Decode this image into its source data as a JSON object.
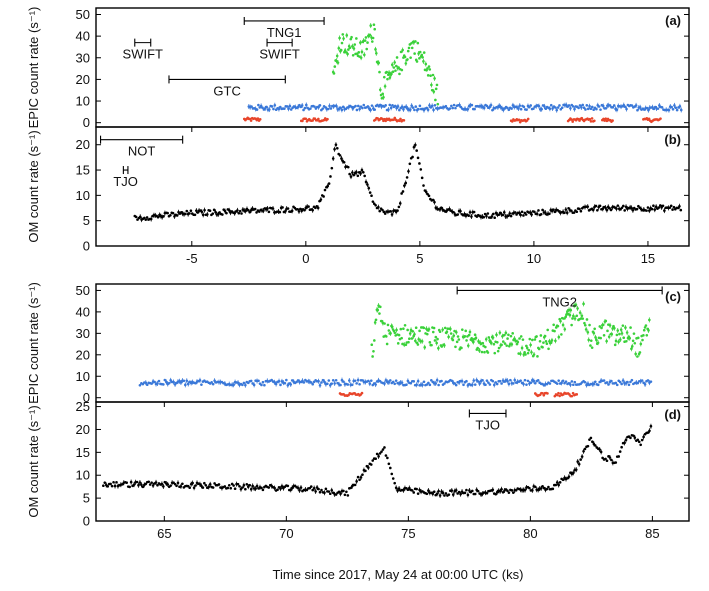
{
  "figure": {
    "xlabel": "Time since 2017, May 24 at 00:00 UTC (ks)"
  },
  "chart_data": [
    {
      "panel": "(a)",
      "type": "scatter",
      "ylabel": "EPIC count rate (s⁻¹)",
      "xlim": [
        -9.2,
        16.8
      ],
      "ylim": [
        -2,
        53
      ],
      "xticks": [],
      "yticks": [
        0,
        10,
        20,
        30,
        40,
        50
      ],
      "series": [
        {
          "color": "#e8452a",
          "kind": "low",
          "x": [
            -2.7,
            0.7,
            3.5,
            9.5,
            12,
            15
          ],
          "y": [
            1.5,
            1.2,
            1.5,
            1.0,
            1.3,
            1.2
          ],
          "gaps": [
            [
              -2.7,
              -2.0
            ],
            [
              -0.2,
              1.0
            ],
            [
              3.0,
              4.3
            ],
            [
              9.0,
              9.8
            ],
            [
              11.5,
              12.7
            ],
            [
              13.0,
              13.5
            ],
            [
              14.8,
              15.6
            ]
          ]
        },
        {
          "color": "#3a78d8",
          "kind": "mid",
          "x": [
            -2.5,
            5,
            10,
            16.5
          ],
          "y": [
            7,
            7,
            7,
            7
          ]
        },
        {
          "color": "#3ad13a",
          "kind": "high",
          "x": [
            1.2,
            1.5,
            2.0,
            2.5,
            3.0,
            3.3,
            4.3,
            4.7,
            5.2,
            5.8
          ],
          "y": [
            20,
            38,
            35,
            33,
            44,
            15,
            30,
            36,
            28,
            12
          ]
        }
      ],
      "intervals": [
        {
          "label": "TNG1",
          "x0": -2.7,
          "x1": 0.8,
          "y": 47
        },
        {
          "label": "SWIFT",
          "x0": -7.5,
          "x1": -6.8,
          "y": 37
        },
        {
          "label": "SWIFT",
          "x0": -1.7,
          "x1": -0.6,
          "y": 37
        },
        {
          "label": "GTC",
          "x0": -6.0,
          "x1": -0.9,
          "y": 20
        }
      ]
    },
    {
      "panel": "(b)",
      "type": "scatter",
      "ylabel": "OM count rate (s⁻¹)",
      "xlim": [
        -9.2,
        16.8
      ],
      "ylim": [
        0,
        23.5
      ],
      "xticks": [
        -5,
        0,
        5,
        10,
        15
      ],
      "yticks": [
        0,
        5,
        10,
        15,
        20
      ],
      "series": [
        {
          "color": "#000000",
          "x": [
            -7.5,
            -5,
            -2,
            0.5,
            1.0,
            1.3,
            1.6,
            2.0,
            2.5,
            3.0,
            3.5,
            4.0,
            4.5,
            4.8,
            5.2,
            5.8,
            6.5,
            8,
            10,
            13,
            16.5
          ],
          "y": [
            5.5,
            6.5,
            7.0,
            7.5,
            12,
            20,
            17,
            14,
            14.5,
            8,
            6.5,
            6.5,
            15,
            20,
            11,
            7.5,
            6.5,
            6,
            6.5,
            7.5,
            7.5
          ]
        }
      ],
      "intervals": [
        {
          "label": "NOT",
          "x0": -9.0,
          "x1": -5.4,
          "y": 21
        },
        {
          "label": "TJO",
          "x0": -8.0,
          "x1": -7.8,
          "y": 15
        }
      ]
    },
    {
      "panel": "(c)",
      "type": "scatter",
      "ylabel": "EPIC count rate (s⁻¹)",
      "xlim": [
        62.2,
        86.5
      ],
      "ylim": [
        -2,
        53
      ],
      "xticks": [],
      "yticks": [
        0,
        10,
        20,
        30,
        40,
        50
      ],
      "series": [
        {
          "color": "#e8452a",
          "kind": "low",
          "x": [
            64,
            73,
            80.5,
            82
          ],
          "y": [
            1.5,
            1.5,
            1.5,
            1.5
          ],
          "gaps": [
            [
              72.2,
              73.1
            ],
            [
              80.2,
              80.7
            ],
            [
              81.0,
              81.9
            ]
          ]
        },
        {
          "color": "#3a78d8",
          "kind": "mid",
          "x": [
            64,
            70,
            76,
            82,
            85
          ],
          "y": [
            7,
            7,
            7,
            7,
            7
          ]
        },
        {
          "color": "#3ad13a",
          "kind": "high",
          "x": [
            73.5,
            73.8,
            74.0,
            80.4,
            82.1,
            82.5,
            83.0,
            83.5,
            84.0,
            84.5,
            84.9
          ],
          "y": [
            20,
            44,
            30,
            24,
            42,
            26,
            32,
            28,
            30,
            22,
            36
          ]
        }
      ],
      "intervals": [
        {
          "label": "TNG2",
          "x0": 77.0,
          "x1": 85.4,
          "y": 50
        }
      ]
    },
    {
      "panel": "(d)",
      "type": "scatter",
      "ylabel": "OM count rate (s⁻¹)",
      "xlim": [
        62.2,
        86.5
      ],
      "ylim": [
        0,
        26
      ],
      "xticks": [
        65,
        70,
        75,
        80,
        85
      ],
      "yticks": [
        0,
        5,
        10,
        15,
        20,
        25
      ],
      "series": [
        {
          "color": "#000000",
          "x": [
            62.5,
            65,
            68,
            71,
            72.5,
            73.5,
            74.0,
            74.5,
            76,
            79,
            81,
            81.8,
            82.5,
            83.0,
            83.5,
            84.0,
            84.5,
            85.0
          ],
          "y": [
            8,
            8,
            7.5,
            7,
            6,
            13,
            16,
            7,
            6,
            6.5,
            7.5,
            11,
            18,
            14,
            13,
            19,
            17,
            21
          ]
        }
      ],
      "intervals": [
        {
          "label": "TJO",
          "x0": 77.5,
          "x1": 79.0,
          "y": 23.5
        }
      ]
    }
  ]
}
